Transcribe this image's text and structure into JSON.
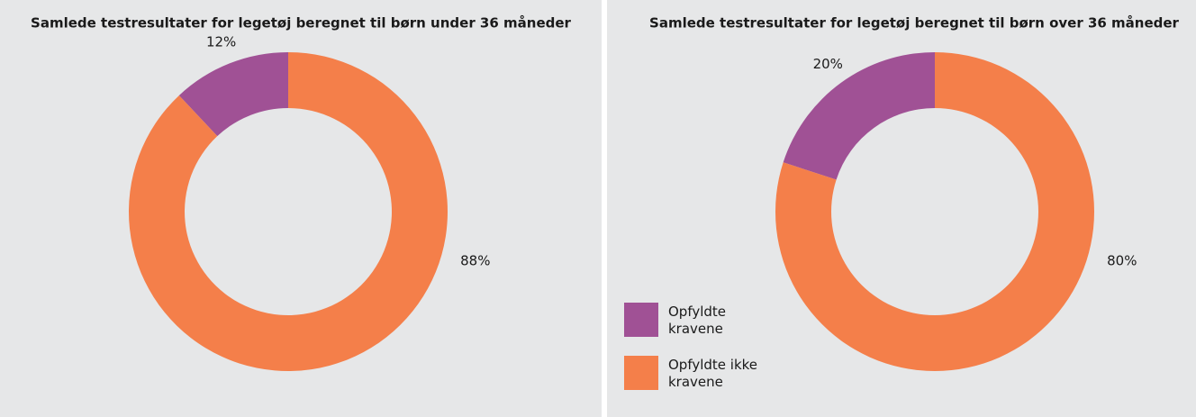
{
  "chart_data": [
    {
      "type": "pie",
      "title": "Samlede testresultater for legetøj beregnet til børn under 36 måneder",
      "values": [
        12,
        88
      ],
      "value_labels": [
        "12%",
        "88%"
      ],
      "colors": [
        "#a05195",
        "#f47f4a"
      ]
    },
    {
      "type": "pie",
      "title": "Samlede testresultater for legetøj beregnet til børn over 36 måneder",
      "categories": [
        "Opfyldte kravene",
        "Opfyldte ikke kravene"
      ],
      "values": [
        20,
        80
      ],
      "value_labels": [
        "20%",
        "80%"
      ],
      "colors": [
        "#a05195",
        "#f47f4a"
      ],
      "legend": "lower-left"
    }
  ]
}
